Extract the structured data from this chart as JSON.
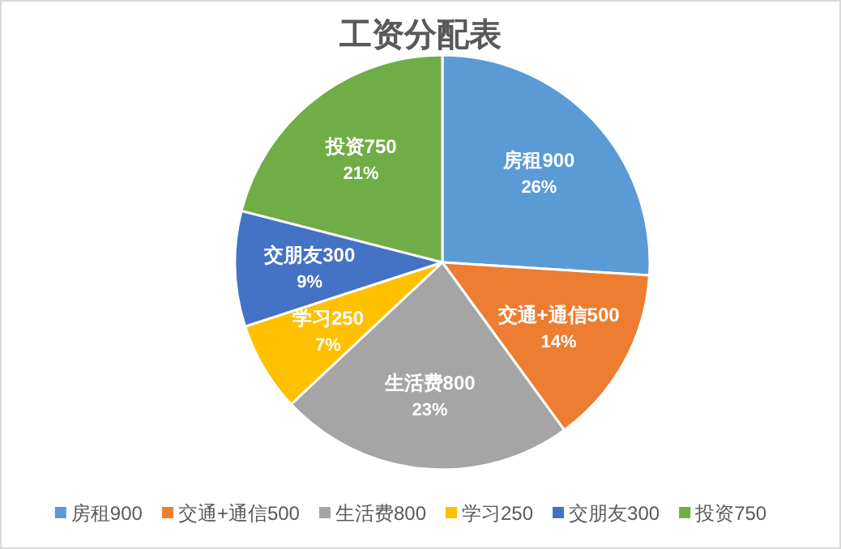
{
  "chart_data": {
    "type": "pie",
    "title": "工资分配表",
    "categories": [
      "房租900",
      "交通+通信500",
      "生活费800",
      "学习250",
      "交朋友300",
      "投资750"
    ],
    "values": [
      26,
      14,
      23,
      7,
      9,
      21
    ],
    "value_labels": [
      "26%",
      "14%",
      "23%",
      "7%",
      "9%",
      "21%"
    ],
    "colors": [
      "#5b9bd5",
      "#ed7d31",
      "#a5a5a5",
      "#ffc000",
      "#4472c4",
      "#70ad47"
    ],
    "legend": "bottom"
  }
}
